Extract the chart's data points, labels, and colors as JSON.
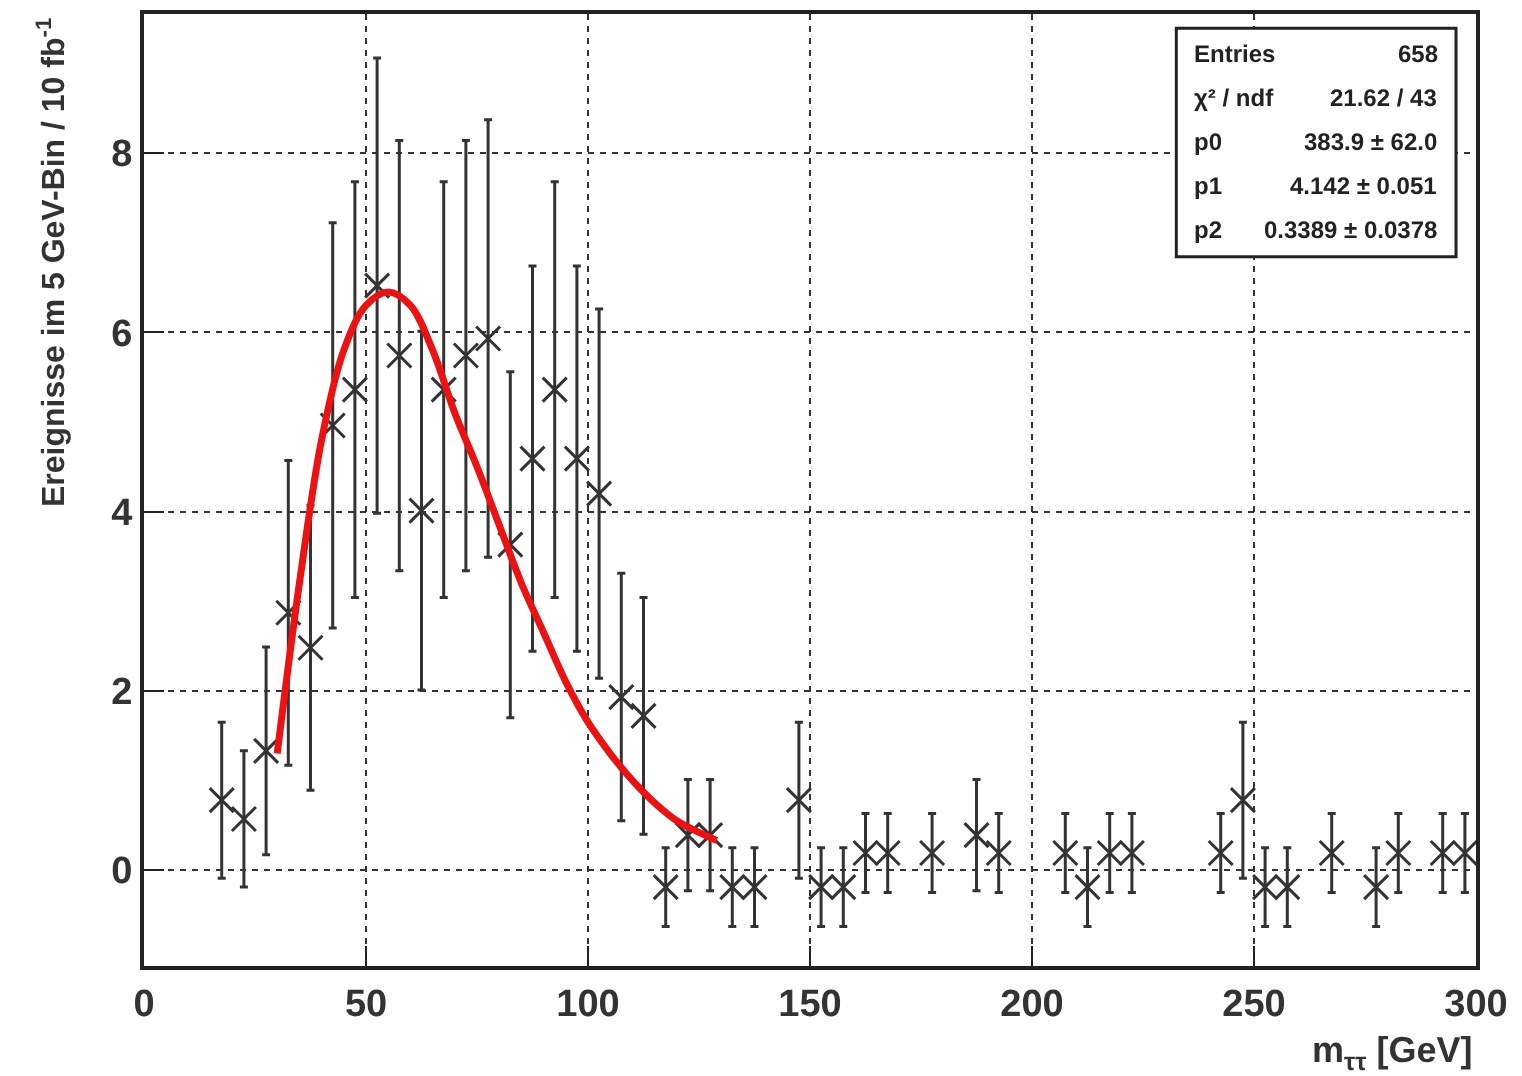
{
  "chart_data": {
    "type": "scatter",
    "xlabel": "m$_{ττ}$ [GeV]",
    "ylabel": "Ereignisse im 5 GeV-Bin / 10 fb$^{-1}$",
    "xlim": [
      0,
      300
    ],
    "xticks": [
      0,
      50,
      100,
      150,
      200,
      250,
      300
    ],
    "ylim": [
      -1.07,
      9.55
    ],
    "yticks": [
      0,
      2,
      4,
      6,
      8
    ],
    "grid": true,
    "marker": "cross",
    "annotations": [
      "Entries",
      "658",
      "χ² / ndf",
      "21.62 / 43",
      "p0",
      "383.9 ± 62.0",
      "p1",
      "4.142 ± 0.051",
      "p2",
      "0.3389 ± 0.0378"
    ],
    "series": [
      {
        "color": "#333333",
        "x": [
          17.5,
          22.5,
          27.5,
          32.5,
          37.5,
          42.5,
          47.5,
          52.5,
          57.5,
          62.5,
          67.5,
          72.5,
          77.5,
          82.5,
          87.5,
          92.5,
          97.5,
          102.5,
          107.5,
          112.5,
          117.5,
          122.5,
          127.5,
          132.5,
          137.5,
          147.5,
          152.5,
          157.5,
          162.5,
          167.5,
          177.5,
          187.5,
          192.5,
          207.5,
          212.5,
          217.5,
          222.5,
          242.5,
          247.5,
          252.5,
          257.5,
          267.5,
          277.5,
          282.5,
          292.5,
          297.5
        ],
        "values": [
          0.78,
          0.57,
          1.33,
          2.87,
          2.48,
          4.96,
          5.36,
          6.52,
          5.74,
          4.01,
          5.36,
          5.74,
          5.93,
          3.63,
          4.59,
          5.36,
          4.59,
          4.2,
          1.93,
          1.72,
          -0.19,
          0.39,
          0.39,
          -0.19,
          -0.19,
          0.78,
          -0.19,
          -0.19,
          0.19,
          0.19,
          0.19,
          0.39,
          0.19,
          0.19,
          -0.19,
          0.19,
          0.19,
          0.19,
          0.78,
          -0.19,
          -0.19,
          0.19,
          -0.19,
          0.19,
          0.19,
          0.19
        ],
        "errors": [
          0.87,
          0.76,
          1.16,
          1.7,
          1.59,
          2.26,
          2.32,
          2.54,
          2.4,
          2.0,
          2.32,
          2.4,
          2.44,
          1.93,
          2.15,
          2.32,
          2.15,
          2.06,
          1.38,
          1.32,
          0.44,
          0.62,
          0.62,
          0.44,
          0.44,
          0.87,
          0.44,
          0.44,
          0.44,
          0.44,
          0.44,
          0.62,
          0.44,
          0.44,
          0.44,
          0.44,
          0.44,
          0.44,
          0.87,
          0.44,
          0.44,
          0.44,
          0.44,
          0.44,
          0.44,
          0.44
        ]
      },
      {
        "type": "line",
        "color": "#ee1111",
        "marker": "none",
        "x": [
          30,
          35,
          40,
          45,
          50,
          55,
          60,
          65,
          70,
          75,
          80,
          85,
          90,
          95,
          100,
          105,
          110,
          115,
          120,
          125,
          129
        ],
        "values": [
          1.3,
          3.2,
          4.8,
          5.8,
          6.3,
          6.45,
          6.3,
          5.8,
          5.1,
          4.5,
          3.85,
          3.2,
          2.65,
          2.1,
          1.65,
          1.3,
          1.0,
          0.75,
          0.55,
          0.42,
          0.33
        ]
      }
    ]
  }
}
